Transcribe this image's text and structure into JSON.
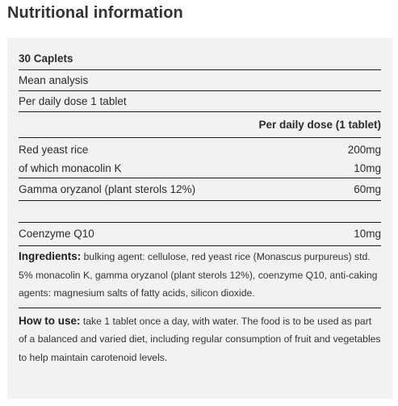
{
  "heading": "Nutritional information",
  "table": {
    "pack_size": "30 Caplets",
    "mean_analysis": "Mean analysis",
    "per_daily_dose_label": "Per daily dose 1 tablet",
    "column_header": "Per daily dose (1 tablet)",
    "rows": [
      {
        "name": "Red yeast rice",
        "value": "200mg"
      },
      {
        "name": "of which monacolin K",
        "value": "10mg"
      },
      {
        "name": "Gamma oryzanol (plant sterols 12%)",
        "value": "60mg"
      },
      {
        "name": "Coenzyme Q10",
        "value": "10mg"
      }
    ]
  },
  "ingredients": {
    "label": "Ingredients:",
    "text": " bulking agent: cellulose, red yeast rice (Monascus purpureus) std. 5% monacolin K, gamma oryzanol (plant sterols 12%), coenzyme Q10, anti-caking agents: magnesium salts of fatty acids, silicon dioxide."
  },
  "how_to_use": {
    "label": "How to use:",
    "text": " take 1 tablet once a day, with water. The food is to be used as part of a balanced and varied diet, including regular consumption of fruit and vegetables to help maintain carotenoid levels."
  }
}
